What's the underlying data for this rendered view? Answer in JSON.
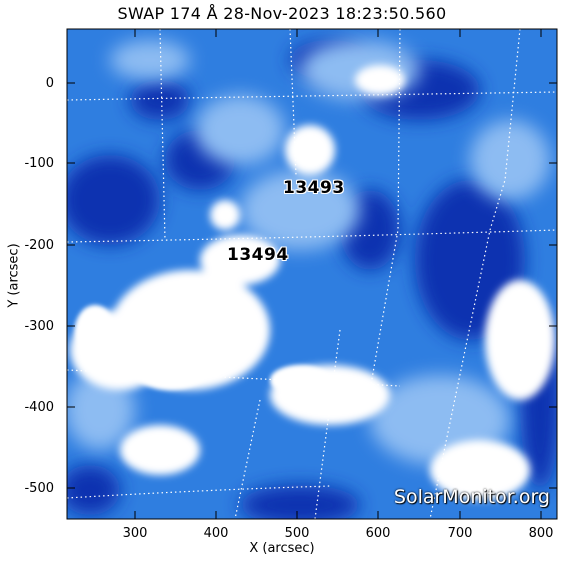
{
  "title": "SWAP 174 Å 28-Nov-2023 18:23:50.560",
  "xlabel": "X (arcsec)",
  "ylabel": "Y (arcsec)",
  "x_ticks": [
    "300",
    "400",
    "500",
    "600",
    "700",
    "800"
  ],
  "y_ticks": [
    "0",
    "-100",
    "-200",
    "-300",
    "-400",
    "-500"
  ],
  "regions": [
    {
      "id": "13493",
      "label": "13493"
    },
    {
      "id": "13494",
      "label": "13494"
    }
  ],
  "watermark": "SolarMonitor.org",
  "colors": {
    "colormap_dark": "#0a2aa8",
    "colormap_mid": "#2f7ee0",
    "colormap_light": "#ffffff",
    "grid": "#ffffff"
  }
}
